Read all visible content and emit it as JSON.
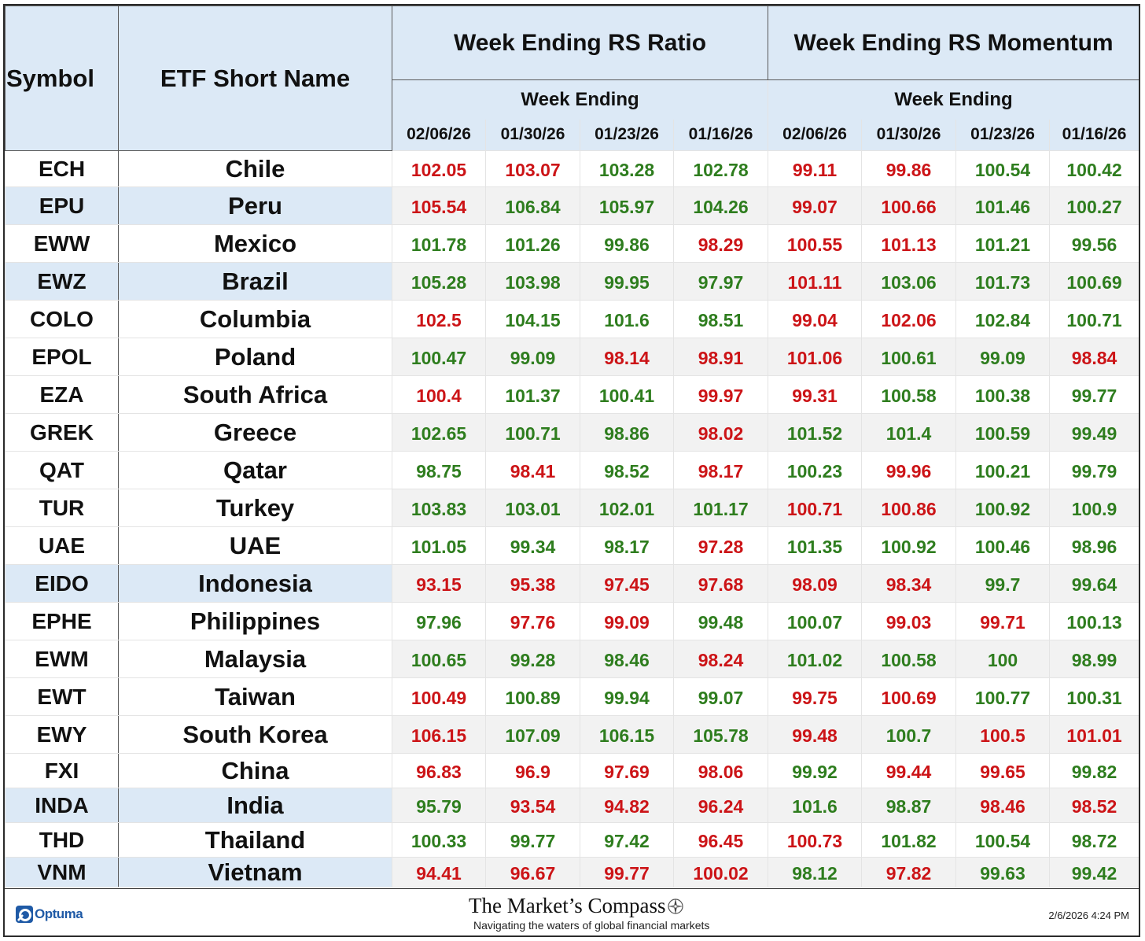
{
  "header": {
    "symbol_label": "Symbol",
    "name_label": "ETF Short Name",
    "ratio_group": "Week Ending RS Ratio",
    "momentum_group": "Week Ending RS Momentum",
    "sub_label_ratio": "Week Ending",
    "sub_label_momentum": "Week Ending",
    "dates": [
      "02/06/26",
      "01/30/26",
      "01/23/26",
      "01/16/26"
    ]
  },
  "colors": {
    "up": "#2e7d1e",
    "down": "#cc1417",
    "header_bg": "#dce9f6",
    "alt_bg": "#f2f2f2"
  },
  "rows": [
    {
      "symbol": "ECH",
      "name": "Chile",
      "ratio": [
        "102.05",
        "103.07",
        "103.28",
        "102.78"
      ],
      "ratio_c": [
        "r",
        "r",
        "g",
        "g"
      ],
      "mom": [
        "99.11",
        "99.86",
        "100.54",
        "100.42"
      ],
      "mom_c": [
        "r",
        "r",
        "g",
        "g"
      ],
      "hl": false
    },
    {
      "symbol": "EPU",
      "name": "Peru",
      "ratio": [
        "105.54",
        "106.84",
        "105.97",
        "104.26"
      ],
      "ratio_c": [
        "r",
        "g",
        "g",
        "g"
      ],
      "mom": [
        "99.07",
        "100.66",
        "101.46",
        "100.27"
      ],
      "mom_c": [
        "r",
        "r",
        "g",
        "g"
      ],
      "hl": true
    },
    {
      "symbol": "EWW",
      "name": "Mexico",
      "ratio": [
        "101.78",
        "101.26",
        "99.86",
        "98.29"
      ],
      "ratio_c": [
        "g",
        "g",
        "g",
        "r"
      ],
      "mom": [
        "100.55",
        "101.13",
        "101.21",
        "99.56"
      ],
      "mom_c": [
        "r",
        "r",
        "g",
        "g"
      ],
      "hl": false
    },
    {
      "symbol": "EWZ",
      "name": "Brazil",
      "ratio": [
        "105.28",
        "103.98",
        "99.95",
        "97.97"
      ],
      "ratio_c": [
        "g",
        "g",
        "g",
        "g"
      ],
      "mom": [
        "101.11",
        "103.06",
        "101.73",
        "100.69"
      ],
      "mom_c": [
        "r",
        "g",
        "g",
        "g"
      ],
      "hl": true
    },
    {
      "symbol": "COLO",
      "name": "Columbia",
      "ratio": [
        "102.5",
        "104.15",
        "101.6",
        "98.51"
      ],
      "ratio_c": [
        "r",
        "g",
        "g",
        "g"
      ],
      "mom": [
        "99.04",
        "102.06",
        "102.84",
        "100.71"
      ],
      "mom_c": [
        "r",
        "r",
        "g",
        "g"
      ],
      "hl": false
    },
    {
      "symbol": "EPOL",
      "name": "Poland",
      "ratio": [
        "100.47",
        "99.09",
        "98.14",
        "98.91"
      ],
      "ratio_c": [
        "g",
        "g",
        "r",
        "r"
      ],
      "mom": [
        "101.06",
        "100.61",
        "99.09",
        "98.84"
      ],
      "mom_c": [
        "r",
        "g",
        "g",
        "r"
      ],
      "hl": false
    },
    {
      "symbol": "EZA",
      "name": "South Africa",
      "ratio": [
        "100.4",
        "101.37",
        "100.41",
        "99.97"
      ],
      "ratio_c": [
        "r",
        "g",
        "g",
        "r"
      ],
      "mom": [
        "99.31",
        "100.58",
        "100.38",
        "99.77"
      ],
      "mom_c": [
        "r",
        "g",
        "g",
        "g"
      ],
      "hl": false
    },
    {
      "symbol": "GREK",
      "name": "Greece",
      "ratio": [
        "102.65",
        "100.71",
        "98.86",
        "98.02"
      ],
      "ratio_c": [
        "g",
        "g",
        "g",
        "r"
      ],
      "mom": [
        "101.52",
        "101.4",
        "100.59",
        "99.49"
      ],
      "mom_c": [
        "g",
        "g",
        "g",
        "g"
      ],
      "hl": false
    },
    {
      "symbol": "QAT",
      "name": "Qatar",
      "ratio": [
        "98.75",
        "98.41",
        "98.52",
        "98.17"
      ],
      "ratio_c": [
        "g",
        "r",
        "g",
        "r"
      ],
      "mom": [
        "100.23",
        "99.96",
        "100.21",
        "99.79"
      ],
      "mom_c": [
        "g",
        "r",
        "g",
        "g"
      ],
      "hl": false
    },
    {
      "symbol": "TUR",
      "name": "Turkey",
      "ratio": [
        "103.83",
        "103.01",
        "102.01",
        "101.17"
      ],
      "ratio_c": [
        "g",
        "g",
        "g",
        "g"
      ],
      "mom": [
        "100.71",
        "100.86",
        "100.92",
        "100.9"
      ],
      "mom_c": [
        "r",
        "r",
        "g",
        "g"
      ],
      "hl": false
    },
    {
      "symbol": "UAE",
      "name": "UAE",
      "ratio": [
        "101.05",
        "99.34",
        "98.17",
        "97.28"
      ],
      "ratio_c": [
        "g",
        "g",
        "g",
        "r"
      ],
      "mom": [
        "101.35",
        "100.92",
        "100.46",
        "98.96"
      ],
      "mom_c": [
        "g",
        "g",
        "g",
        "g"
      ],
      "hl": false
    },
    {
      "symbol": "EIDO",
      "name": "Indonesia",
      "ratio": [
        "93.15",
        "95.38",
        "97.45",
        "97.68"
      ],
      "ratio_c": [
        "r",
        "r",
        "r",
        "r"
      ],
      "mom": [
        "98.09",
        "98.34",
        "99.7",
        "99.64"
      ],
      "mom_c": [
        "r",
        "r",
        "g",
        "g"
      ],
      "hl": true
    },
    {
      "symbol": "EPHE",
      "name": "Philippines",
      "ratio": [
        "97.96",
        "97.76",
        "99.09",
        "99.48"
      ],
      "ratio_c": [
        "g",
        "r",
        "r",
        "g"
      ],
      "mom": [
        "100.07",
        "99.03",
        "99.71",
        "100.13"
      ],
      "mom_c": [
        "g",
        "r",
        "r",
        "g"
      ],
      "hl": false
    },
    {
      "symbol": "EWM",
      "name": "Malaysia",
      "ratio": [
        "100.65",
        "99.28",
        "98.46",
        "98.24"
      ],
      "ratio_c": [
        "g",
        "g",
        "g",
        "r"
      ],
      "mom": [
        "101.02",
        "100.58",
        "100",
        "98.99"
      ],
      "mom_c": [
        "g",
        "g",
        "g",
        "g"
      ],
      "hl": false
    },
    {
      "symbol": "EWT",
      "name": "Taiwan",
      "ratio": [
        "100.49",
        "100.89",
        "99.94",
        "99.07"
      ],
      "ratio_c": [
        "r",
        "g",
        "g",
        "g"
      ],
      "mom": [
        "99.75",
        "100.69",
        "100.77",
        "100.31"
      ],
      "mom_c": [
        "r",
        "r",
        "g",
        "g"
      ],
      "hl": false
    },
    {
      "symbol": "EWY",
      "name": "South Korea",
      "ratio": [
        "106.15",
        "107.09",
        "106.15",
        "105.78"
      ],
      "ratio_c": [
        "r",
        "g",
        "g",
        "g"
      ],
      "mom": [
        "99.48",
        "100.7",
        "100.5",
        "101.01"
      ],
      "mom_c": [
        "r",
        "g",
        "r",
        "r"
      ],
      "hl": false
    },
    {
      "symbol": "FXI",
      "name": "China",
      "ratio": [
        "96.83",
        "96.9",
        "97.69",
        "98.06"
      ],
      "ratio_c": [
        "r",
        "r",
        "r",
        "r"
      ],
      "mom": [
        "99.92",
        "99.44",
        "99.65",
        "99.82"
      ],
      "mom_c": [
        "g",
        "r",
        "r",
        "g"
      ],
      "hl": false
    },
    {
      "symbol": "INDA",
      "name": "India",
      "ratio": [
        "95.79",
        "93.54",
        "94.82",
        "96.24"
      ],
      "ratio_c": [
        "g",
        "r",
        "r",
        "r"
      ],
      "mom": [
        "101.6",
        "98.87",
        "98.46",
        "98.52"
      ],
      "mom_c": [
        "g",
        "g",
        "r",
        "r"
      ],
      "hl": true
    },
    {
      "symbol": "THD",
      "name": "Thailand",
      "ratio": [
        "100.33",
        "99.77",
        "97.42",
        "96.45"
      ],
      "ratio_c": [
        "g",
        "g",
        "g",
        "r"
      ],
      "mom": [
        "100.73",
        "101.82",
        "100.54",
        "98.72"
      ],
      "mom_c": [
        "r",
        "g",
        "g",
        "g"
      ],
      "hl": false
    },
    {
      "symbol": "VNM",
      "name": "Vietnam",
      "ratio": [
        "94.41",
        "96.67",
        "99.77",
        "100.02"
      ],
      "ratio_c": [
        "r",
        "r",
        "r",
        "r"
      ],
      "mom": [
        "98.12",
        "97.82",
        "99.63",
        "99.42"
      ],
      "mom_c": [
        "g",
        "r",
        "g",
        "g"
      ],
      "hl": true
    }
  ],
  "footer": {
    "logo_text": "Optuma",
    "brand_title": "The Market’s Compass",
    "brand_tagline": "Navigating the waters of global financial markets",
    "timestamp": "2/6/2026 4:24 PM"
  }
}
